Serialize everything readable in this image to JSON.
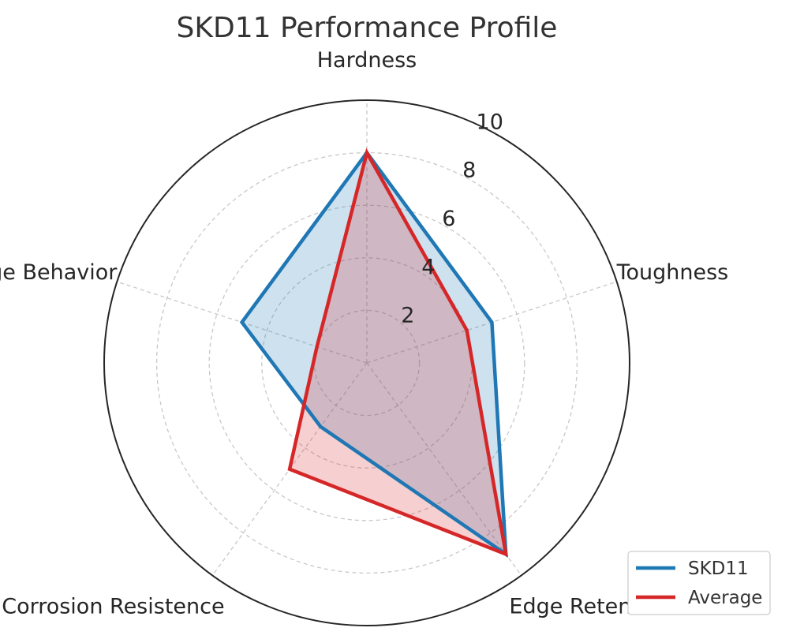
{
  "chart_data": {
    "type": "radar",
    "title": "SKD11 Performance Profile",
    "axes": [
      "Hardness",
      "Toughness",
      "Edge Retention",
      "Corrosion Resistence",
      "Edge Behavior"
    ],
    "rlim": [
      0,
      10
    ],
    "rticks": [
      2,
      4,
      6,
      8,
      10
    ],
    "grid": true,
    "legend_position": "bottom-right",
    "series": [
      {
        "name": "SKD11",
        "values": [
          8,
          5,
          9,
          3,
          5
        ],
        "color": "#1f77b4"
      },
      {
        "name": "Average",
        "values": [
          8,
          4,
          9,
          5,
          2
        ],
        "color": "#d62728"
      }
    ]
  }
}
